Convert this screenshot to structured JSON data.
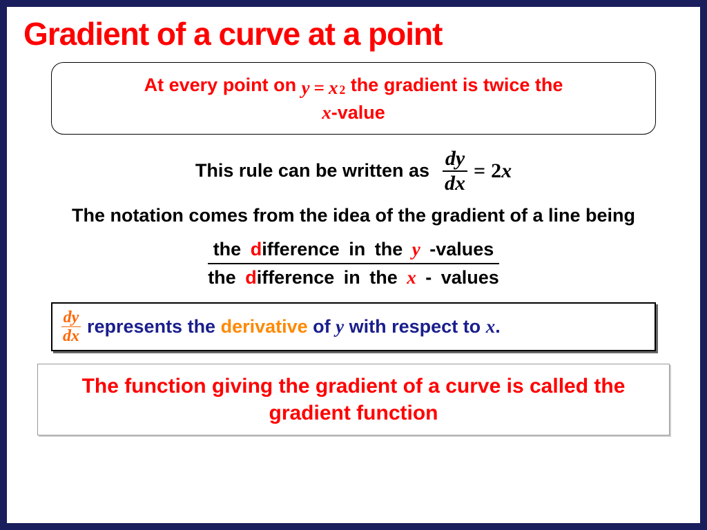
{
  "colors": {
    "page_border": "#1a1e5c",
    "background": "#ffffff",
    "title": "#ff0000",
    "accent_red": "#ff0000",
    "accent_orange": "#ff8800",
    "accent_navy": "#1a1e8c",
    "body_text": "#000000",
    "box_border": "#000000",
    "shadow": "#666666"
  },
  "title": "Gradient of a curve at a point",
  "callout": {
    "prefix": "At every point on ",
    "equation": {
      "lhs": "y",
      "op": "=",
      "rhs_base": "x",
      "rhs_exp": "2"
    },
    "suffix": " the gradient is twice the ",
    "line2_var": "x",
    "line2_suffix": "-value"
  },
  "rule_line": {
    "text": "This rule can be written as",
    "frac_num": "dy",
    "frac_den": "dx",
    "eq": "=",
    "rhs_coeff": "2",
    "rhs_var": "x"
  },
  "notation_text": "The notation comes from the idea of the gradient of a line being",
  "diff_frac": {
    "top": {
      "the": "the ",
      "d": "d",
      "rest1": "ifference in the ",
      "var": "y",
      "rest2": " -values"
    },
    "bot": {
      "the": "the ",
      "d": "d",
      "rest1": "ifference in the ",
      "var": "x",
      "rest2": " - values"
    }
  },
  "deriv_box": {
    "frac_num": "dy",
    "frac_den": "dx",
    "t1": "represents the ",
    "derivative_word": "derivative",
    "t2": " of ",
    "var_y": "y",
    "t3": " with respect to ",
    "var_x": "x",
    "t4": "."
  },
  "bottom_box": "The function giving the gradient of a curve is called the gradient function"
}
